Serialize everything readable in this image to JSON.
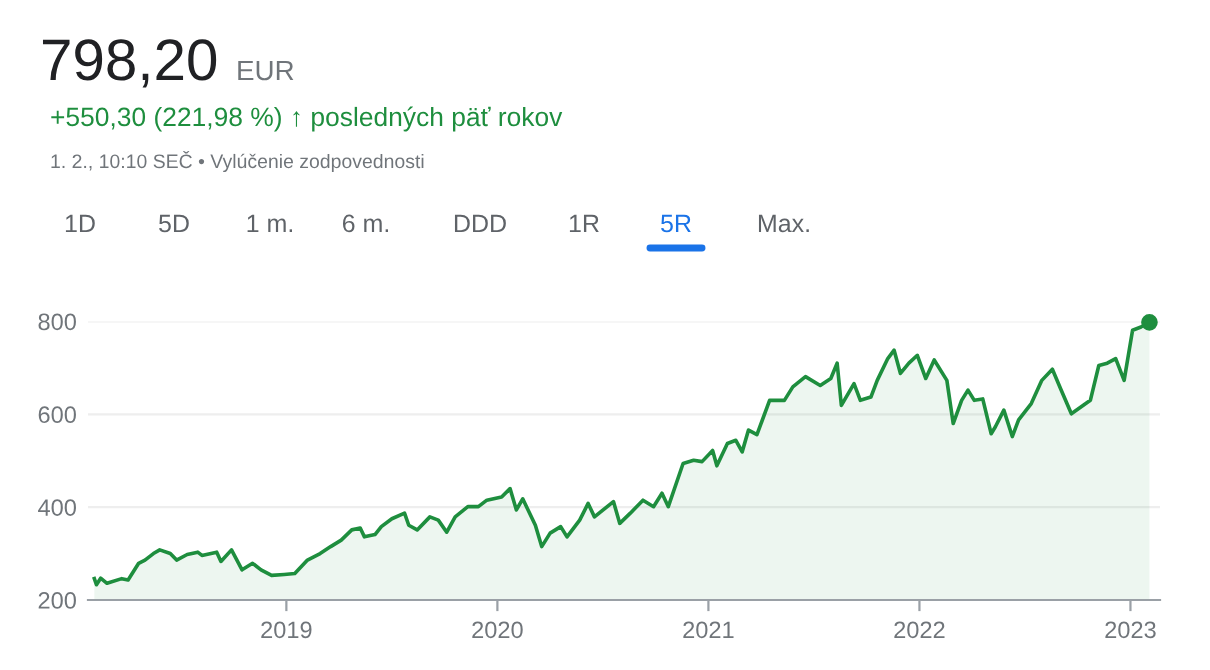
{
  "chart_data": {
    "type": "area",
    "title": "798,20",
    "annotations": [
      "EUR",
      "+550,30 (221,98 %) ↑ posledných päť rokov",
      "1. 2., 10:10 SEČ • Vylúčenie zodpovednosti",
      "1D",
      "5D",
      "1 m.",
      "6 m.",
      "DDD",
      "1R",
      "5R",
      "Max."
    ],
    "series": [
      {
        "color": "#1e8e3e",
        "x": [
          2018.09,
          2018.1,
          2018.12,
          2018.15,
          2018.22,
          2018.25,
          2018.3,
          2018.33,
          2018.37,
          2018.4,
          2018.45,
          2018.48,
          2018.53,
          2018.58,
          2018.6,
          2018.67,
          2018.69,
          2018.74,
          2018.79,
          2018.84,
          2018.88,
          2018.93,
          2018.99,
          2019.04,
          2019.1,
          2019.16,
          2019.21,
          2019.26,
          2019.31,
          2019.35,
          2019.37,
          2019.42,
          2019.45,
          2019.5,
          2019.56,
          2019.58,
          2019.62,
          2019.68,
          2019.72,
          2019.76,
          2019.8,
          2019.86,
          2019.91,
          2019.95,
          2020.02,
          2020.06,
          2020.09,
          2020.12,
          2020.18,
          2020.21,
          2020.25,
          2020.3,
          2020.33,
          2020.39,
          2020.43,
          2020.46,
          2020.55,
          2020.58,
          2020.63,
          2020.69,
          2020.74,
          2020.78,
          2020.81,
          2020.88,
          2020.93,
          2020.97,
          2021.02,
          2021.04,
          2021.09,
          2021.13,
          2021.16,
          2021.19,
          2021.23,
          2021.29,
          2021.36,
          2021.4,
          2021.46,
          2021.53,
          2021.58,
          2021.61,
          2021.63,
          2021.69,
          2021.72,
          2021.77,
          2021.8,
          2021.85,
          2021.88,
          2021.91,
          2021.95,
          2021.99,
          2022.03,
          2022.07,
          2022.13,
          2022.16,
          2022.2,
          2022.23,
          2022.26,
          2022.3,
          2022.34,
          2022.36,
          2022.4,
          2022.44,
          2022.47,
          2022.53,
          2022.58,
          2022.63,
          2022.67,
          2022.72,
          2022.81,
          2022.85,
          2022.89,
          2022.93,
          2022.97,
          2023.01,
          2023.05,
          2023.09
        ],
        "values": [
          246,
          233,
          247,
          236,
          246,
          243,
          279,
          286,
          300,
          308,
          300,
          286,
          298,
          303,
          296,
          303,
          283,
          308,
          265,
          279,
          265,
          253,
          255,
          257,
          286,
          300,
          315,
          329,
          351,
          355,
          336,
          341,
          358,
          375,
          387,
          361,
          351,
          379,
          372,
          346,
          379,
          401,
          401,
          415,
          422,
          440,
          394,
          418,
          361,
          315,
          344,
          358,
          336,
          372,
          408,
          379,
          412,
          365,
          387,
          415,
          401,
          430,
          401,
          494,
          501,
          498,
          522,
          489,
          537,
          544,
          519,
          566,
          556,
          630,
          630,
          659,
          681,
          662,
          677,
          710,
          619,
          666,
          630,
          637,
          673,
          720,
          738,
          688,
          710,
          727,
          677,
          717,
          673,
          580,
          630,
          652,
          630,
          633,
          558,
          573,
          609,
          552,
          588,
          623,
          673,
          697,
          654,
          601,
          630,
          705,
          710,
          720,
          673,
          781,
          788,
          798
        ]
      }
    ],
    "xlim": [
      2018.06,
      2023.14
    ],
    "ylim": [
      200,
      800
    ],
    "xticks": [
      2019,
      2020,
      2021,
      2022,
      2023
    ],
    "yticks": [
      200,
      400,
      600,
      800
    ],
    "grid": "y",
    "marker": "none",
    "line_style": "solid",
    "legend": false
  }
}
